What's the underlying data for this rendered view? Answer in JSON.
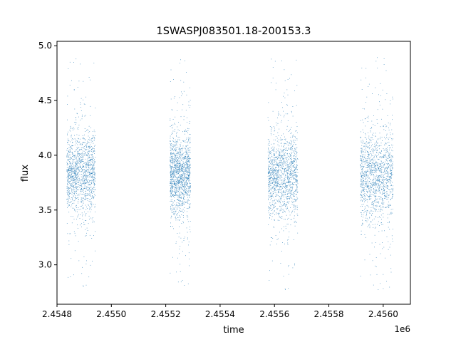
{
  "chart_data": {
    "type": "scatter",
    "title": "1SWASPJ083501.18-200153.3",
    "xlabel": "time",
    "ylabel": "flux",
    "x_offset_label": "1e6",
    "xlim": [
      2454800,
      2456100
    ],
    "ylim": [
      2.64,
      5.04
    ],
    "x_ticks": [
      2454800,
      2455000,
      2455200,
      2455400,
      2455600,
      2455800,
      2456000
    ],
    "x_tick_labels": [
      "2.4548",
      "2.4550",
      "2.4552",
      "2.4554",
      "2.4556",
      "2.4558",
      "2.4560"
    ],
    "y_ticks": [
      3.0,
      3.5,
      4.0,
      4.5,
      5.0
    ],
    "y_tick_labels": [
      "3.0",
      "3.5",
      "4.0",
      "4.5",
      "5.0"
    ],
    "grid": false,
    "marker_color": "#1f77b4",
    "seasons": [
      {
        "x_start": 2454835,
        "x_end": 2454940,
        "flux_median": 3.84,
        "flux_low": 3.52,
        "flux_high": 4.2,
        "flux_min": 2.78,
        "flux_max": 4.9
      },
      {
        "x_start": 2455215,
        "x_end": 2455290,
        "flux_median": 3.83,
        "flux_low": 3.5,
        "flux_high": 4.2,
        "flux_min": 2.78,
        "flux_max": 4.9
      },
      {
        "x_start": 2455575,
        "x_end": 2455685,
        "flux_median": 3.82,
        "flux_low": 3.5,
        "flux_high": 4.2,
        "flux_min": 2.75,
        "flux_max": 4.93
      },
      {
        "x_start": 2455915,
        "x_end": 2456035,
        "flux_median": 3.82,
        "flux_low": 3.45,
        "flux_high": 4.25,
        "flux_min": 2.75,
        "flux_max": 4.92
      }
    ]
  }
}
